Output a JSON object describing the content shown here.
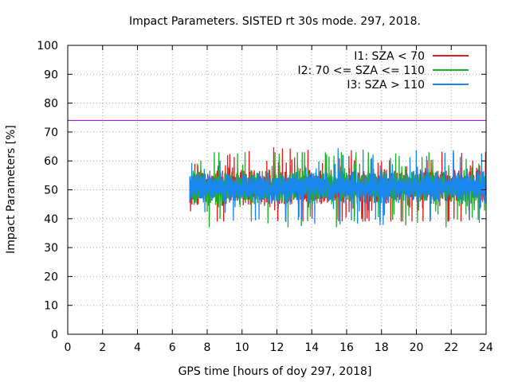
{
  "chart_data": {
    "type": "line",
    "title": "Impact Parameters. SISTED rt 30s mode. 297, 2018.",
    "xlabel": "GPS time [hours of doy 297, 2018]",
    "ylabel": "Impact Parameters [%]",
    "xlim": [
      0,
      24
    ],
    "ylim": [
      0,
      100
    ],
    "xticks": [
      0,
      2,
      4,
      6,
      8,
      10,
      12,
      14,
      16,
      18,
      20,
      22,
      24
    ],
    "yticks": [
      0,
      10,
      20,
      30,
      40,
      50,
      60,
      70,
      80,
      90,
      100
    ],
    "grid": true,
    "legend_position": "top-right",
    "reference_line": {
      "y": 74,
      "color": "#9400d3"
    },
    "series": [
      {
        "name": "I1: SZA < 70",
        "color": "#e41a1c",
        "x_start": 7.0,
        "x_end": 24.0,
        "center": 51,
        "spread": 5,
        "y_min": 39,
        "y_max": 65
      },
      {
        "name": "I2: 70 <= SZA <= 110",
        "color": "#1fad2a",
        "x_start": 7.0,
        "x_end": 24.0,
        "center": 51,
        "spread": 5,
        "y_min": 37,
        "y_max": 63
      },
      {
        "name": "I3: SZA > 110",
        "color": "#1a86f0",
        "x_start": 7.0,
        "x_end": 24.0,
        "center": 51,
        "spread": 4.5,
        "y_min": 35,
        "y_max": 68
      }
    ]
  }
}
